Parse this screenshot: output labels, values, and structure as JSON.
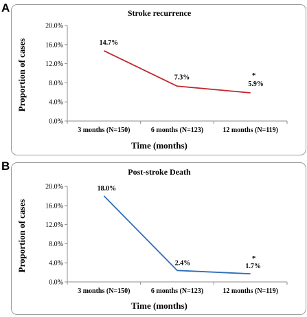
{
  "chart_data": [
    {
      "panel": "A",
      "type": "line",
      "title": "Stroke recurrence",
      "xlabel": "Time (months)",
      "ylabel": "Proportion of cases",
      "categories": [
        "3 months (N=150)",
        "6 months (N=123)",
        "12 months (N=119)"
      ],
      "values": [
        14.7,
        7.3,
        5.9
      ],
      "data_labels": [
        "14.7%",
        "7.3%",
        "5.9%"
      ],
      "annotation": "*",
      "annotation_index": 2,
      "yticks": [
        "0.0%",
        "4.0%",
        "8.0%",
        "12.0%",
        "16.0%",
        "20.0%"
      ],
      "ylim": [
        0,
        20
      ],
      "line_color": "#c0272d",
      "grid": false
    },
    {
      "panel": "B",
      "type": "line",
      "title": "Post-stroke Death",
      "xlabel": "Time (months)",
      "ylabel": "Proportion of cases",
      "categories": [
        "3 months (N=150)",
        "6 months (N=123)",
        "12 months (N=119)"
      ],
      "values": [
        18.0,
        2.4,
        1.7
      ],
      "data_labels": [
        "18.0%",
        "2.4%",
        "1.7%"
      ],
      "annotation": "*",
      "annotation_index": 2,
      "yticks": [
        "0.0%",
        "4.0%",
        "8.0%",
        "12.0%",
        "16.0%",
        "20.0%"
      ],
      "ylim": [
        0,
        20
      ],
      "line_color": "#2e6fb7",
      "grid": false
    }
  ]
}
